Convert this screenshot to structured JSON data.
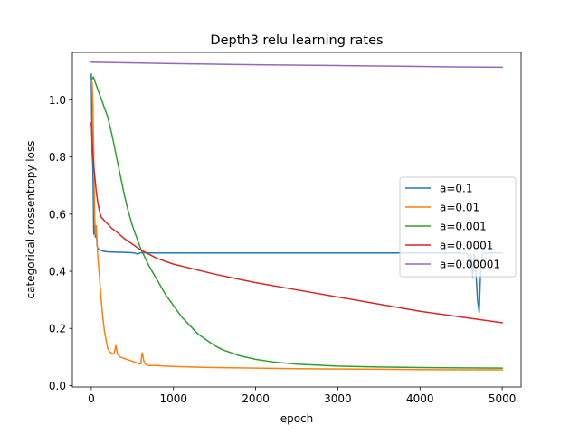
{
  "chart_data": {
    "type": "line",
    "title": "Depth3 relu learning rates",
    "xlabel": "epoch",
    "ylabel": "categorical crossentropy loss",
    "xlim": [
      -230,
      5230
    ],
    "ylim": [
      -0.005,
      1.166
    ],
    "xticks": [
      0,
      1000,
      2000,
      3000,
      4000,
      5000
    ],
    "xtick_labels": [
      "0",
      "1000",
      "2000",
      "3000",
      "4000",
      "5000"
    ],
    "yticks": [
      0.0,
      0.2,
      0.4,
      0.6,
      0.8,
      1.0
    ],
    "ytick_labels": [
      "0.0",
      "0.2",
      "0.4",
      "0.6",
      "0.8",
      "1.0"
    ],
    "legend_position": "center-right",
    "series": [
      {
        "name": "a=0.1",
        "color": "#1f77b4",
        "x": [
          0,
          10,
          20,
          30,
          40,
          50,
          60,
          70,
          80,
          100,
          150,
          200,
          300,
          400,
          500,
          550,
          560,
          600,
          700,
          800,
          1000,
          1500,
          2000,
          2500,
          3000,
          3500,
          4000,
          4500,
          4580,
          4600,
          4620,
          4640,
          4660,
          4680,
          4700,
          4720,
          4740,
          4760,
          4800,
          5000
        ],
        "y": [
          1.09,
          0.82,
          0.76,
          0.53,
          0.56,
          0.52,
          0.55,
          0.49,
          0.48,
          0.475,
          0.47,
          0.468,
          0.467,
          0.466,
          0.465,
          0.462,
          0.46,
          0.465,
          0.464,
          0.464,
          0.464,
          0.464,
          0.464,
          0.464,
          0.464,
          0.464,
          0.464,
          0.464,
          0.46,
          0.42,
          0.46,
          0.38,
          0.46,
          0.4,
          0.3,
          0.256,
          0.42,
          0.46,
          0.464,
          0.464
        ]
      },
      {
        "name": "a=0.01",
        "color": "#ff7f0e",
        "x": [
          0,
          10,
          20,
          30,
          40,
          50,
          60,
          80,
          100,
          120,
          140,
          160,
          180,
          200,
          220,
          240,
          260,
          280,
          300,
          320,
          350,
          400,
          450,
          500,
          550,
          600,
          620,
          640,
          660,
          700,
          800,
          900,
          1000,
          1200,
          1500,
          2000,
          2500,
          3000,
          3500,
          4000,
          4500,
          5000
        ],
        "y": [
          1.07,
          1.06,
          0.98,
          0.8,
          0.6,
          0.53,
          0.56,
          0.45,
          0.38,
          0.3,
          0.24,
          0.19,
          0.16,
          0.13,
          0.12,
          0.115,
          0.11,
          0.115,
          0.14,
          0.11,
          0.1,
          0.095,
          0.09,
          0.085,
          0.08,
          0.075,
          0.115,
          0.085,
          0.075,
          0.07,
          0.07,
          0.068,
          0.067,
          0.065,
          0.063,
          0.061,
          0.059,
          0.058,
          0.057,
          0.056,
          0.055,
          0.055
        ]
      },
      {
        "name": "a=0.001",
        "color": "#2ca02c",
        "x": [
          0,
          25,
          50,
          100,
          150,
          200,
          250,
          300,
          350,
          400,
          450,
          500,
          550,
          600,
          650,
          700,
          800,
          900,
          1000,
          1100,
          1200,
          1300,
          1400,
          1500,
          1600,
          1700,
          1800,
          2000,
          2200,
          2500,
          3000,
          3500,
          4000,
          4500,
          5000
        ],
        "y": [
          1.07,
          1.08,
          1.06,
          1.02,
          0.98,
          0.94,
          0.88,
          0.81,
          0.74,
          0.67,
          0.61,
          0.56,
          0.52,
          0.48,
          0.45,
          0.42,
          0.37,
          0.32,
          0.28,
          0.24,
          0.21,
          0.18,
          0.16,
          0.14,
          0.125,
          0.115,
          0.105,
          0.092,
          0.083,
          0.075,
          0.068,
          0.065,
          0.063,
          0.062,
          0.061
        ]
      },
      {
        "name": "a=0.0001",
        "color": "#d62728",
        "x": [
          0,
          10,
          20,
          30,
          40,
          50,
          60,
          80,
          100,
          120,
          150,
          200,
          250,
          300,
          400,
          500,
          600,
          700,
          800,
          1000,
          1500,
          2000,
          2500,
          3000,
          3500,
          4000,
          4500,
          5000
        ],
        "y": [
          0.92,
          0.86,
          0.81,
          0.77,
          0.74,
          0.71,
          0.68,
          0.64,
          0.61,
          0.59,
          0.58,
          0.565,
          0.55,
          0.54,
          0.515,
          0.495,
          0.475,
          0.46,
          0.445,
          0.425,
          0.39,
          0.36,
          0.335,
          0.31,
          0.285,
          0.26,
          0.24,
          0.22
        ]
      },
      {
        "name": "a=0.00001",
        "color": "#9467bd",
        "x": [
          0,
          1000,
          2000,
          3000,
          4000,
          4500,
          5000
        ],
        "y": [
          1.132,
          1.127,
          1.123,
          1.12,
          1.117,
          1.115,
          1.114
        ]
      }
    ]
  }
}
